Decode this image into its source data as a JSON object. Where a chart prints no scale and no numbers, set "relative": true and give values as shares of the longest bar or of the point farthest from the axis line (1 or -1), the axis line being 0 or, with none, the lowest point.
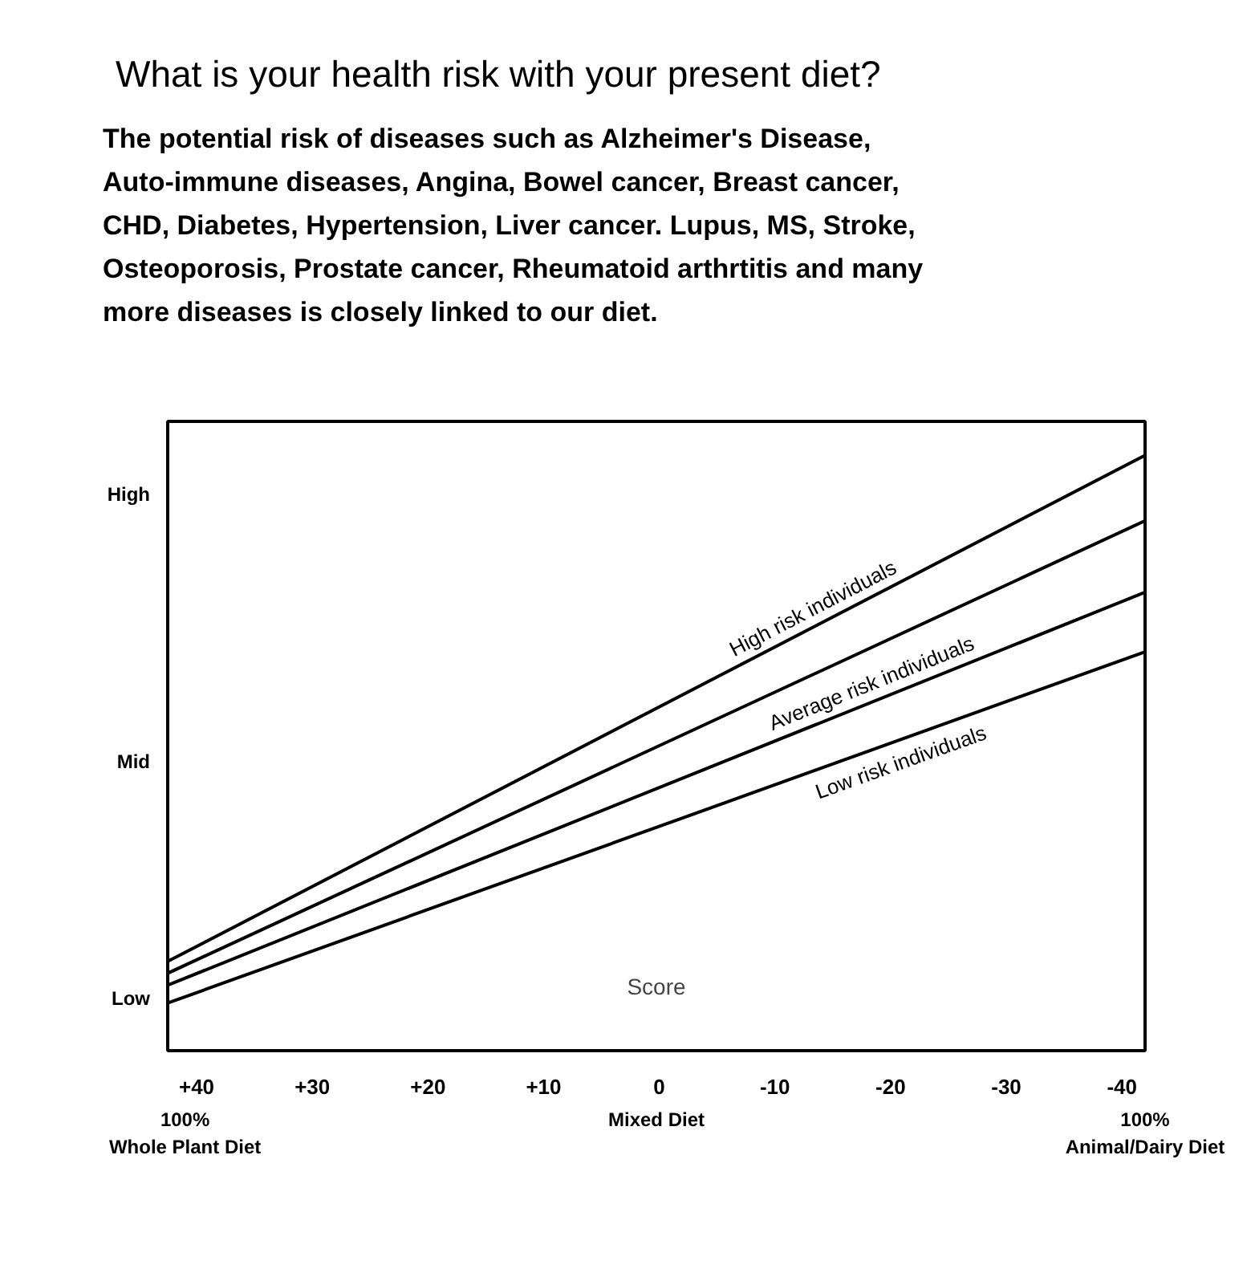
{
  "chart_data": {
    "type": "line",
    "title": "What is your health risk with your present diet?",
    "subtitle": "The potential risk of diseases such as Alzheimer's Disease,\nAuto-immune diseases, Angina, Bowel cancer, Breast cancer,\nCHD, Diabetes, Hypertension, Liver cancer. Lupus, MS, Stroke,\nOsteoporosis, Prostate cancer, Rheumatoid arthrtitis and many\nmore diseases is closely linked to our diet.",
    "relative": true,
    "x": [
      42.5,
      -42
    ],
    "series": [
      {
        "name": "High risk individuals",
        "color": "#000000",
        "values": [
          0.15,
          1
        ]
      },
      {
        "color": "#000000",
        "values": [
          0.13,
          0.89
        ]
      },
      {
        "name": "Average risk individuals",
        "color": "#000000",
        "values": [
          0.11,
          0.77
        ]
      },
      {
        "name": "Low risk individuals",
        "color": "#000000",
        "values": [
          0.08,
          0.67
        ]
      }
    ],
    "xlim": [
      42.5,
      -42
    ],
    "xticks": [
      {
        "value": 40,
        "label": "+40"
      },
      {
        "value": 30,
        "label": "+30"
      },
      {
        "value": 20,
        "label": "+20"
      },
      {
        "value": 10,
        "label": "+10"
      },
      0,
      -10,
      -20,
      -30,
      -40
    ],
    "annotations": [
      "Low",
      "Mid",
      "High",
      "Score",
      "100%\nWhole Plant Diet",
      "Mixed Diet",
      "100%\nAnimal/Dairy Diet"
    ],
    "grid": false,
    "marker": "none",
    "line_style": "solid"
  }
}
